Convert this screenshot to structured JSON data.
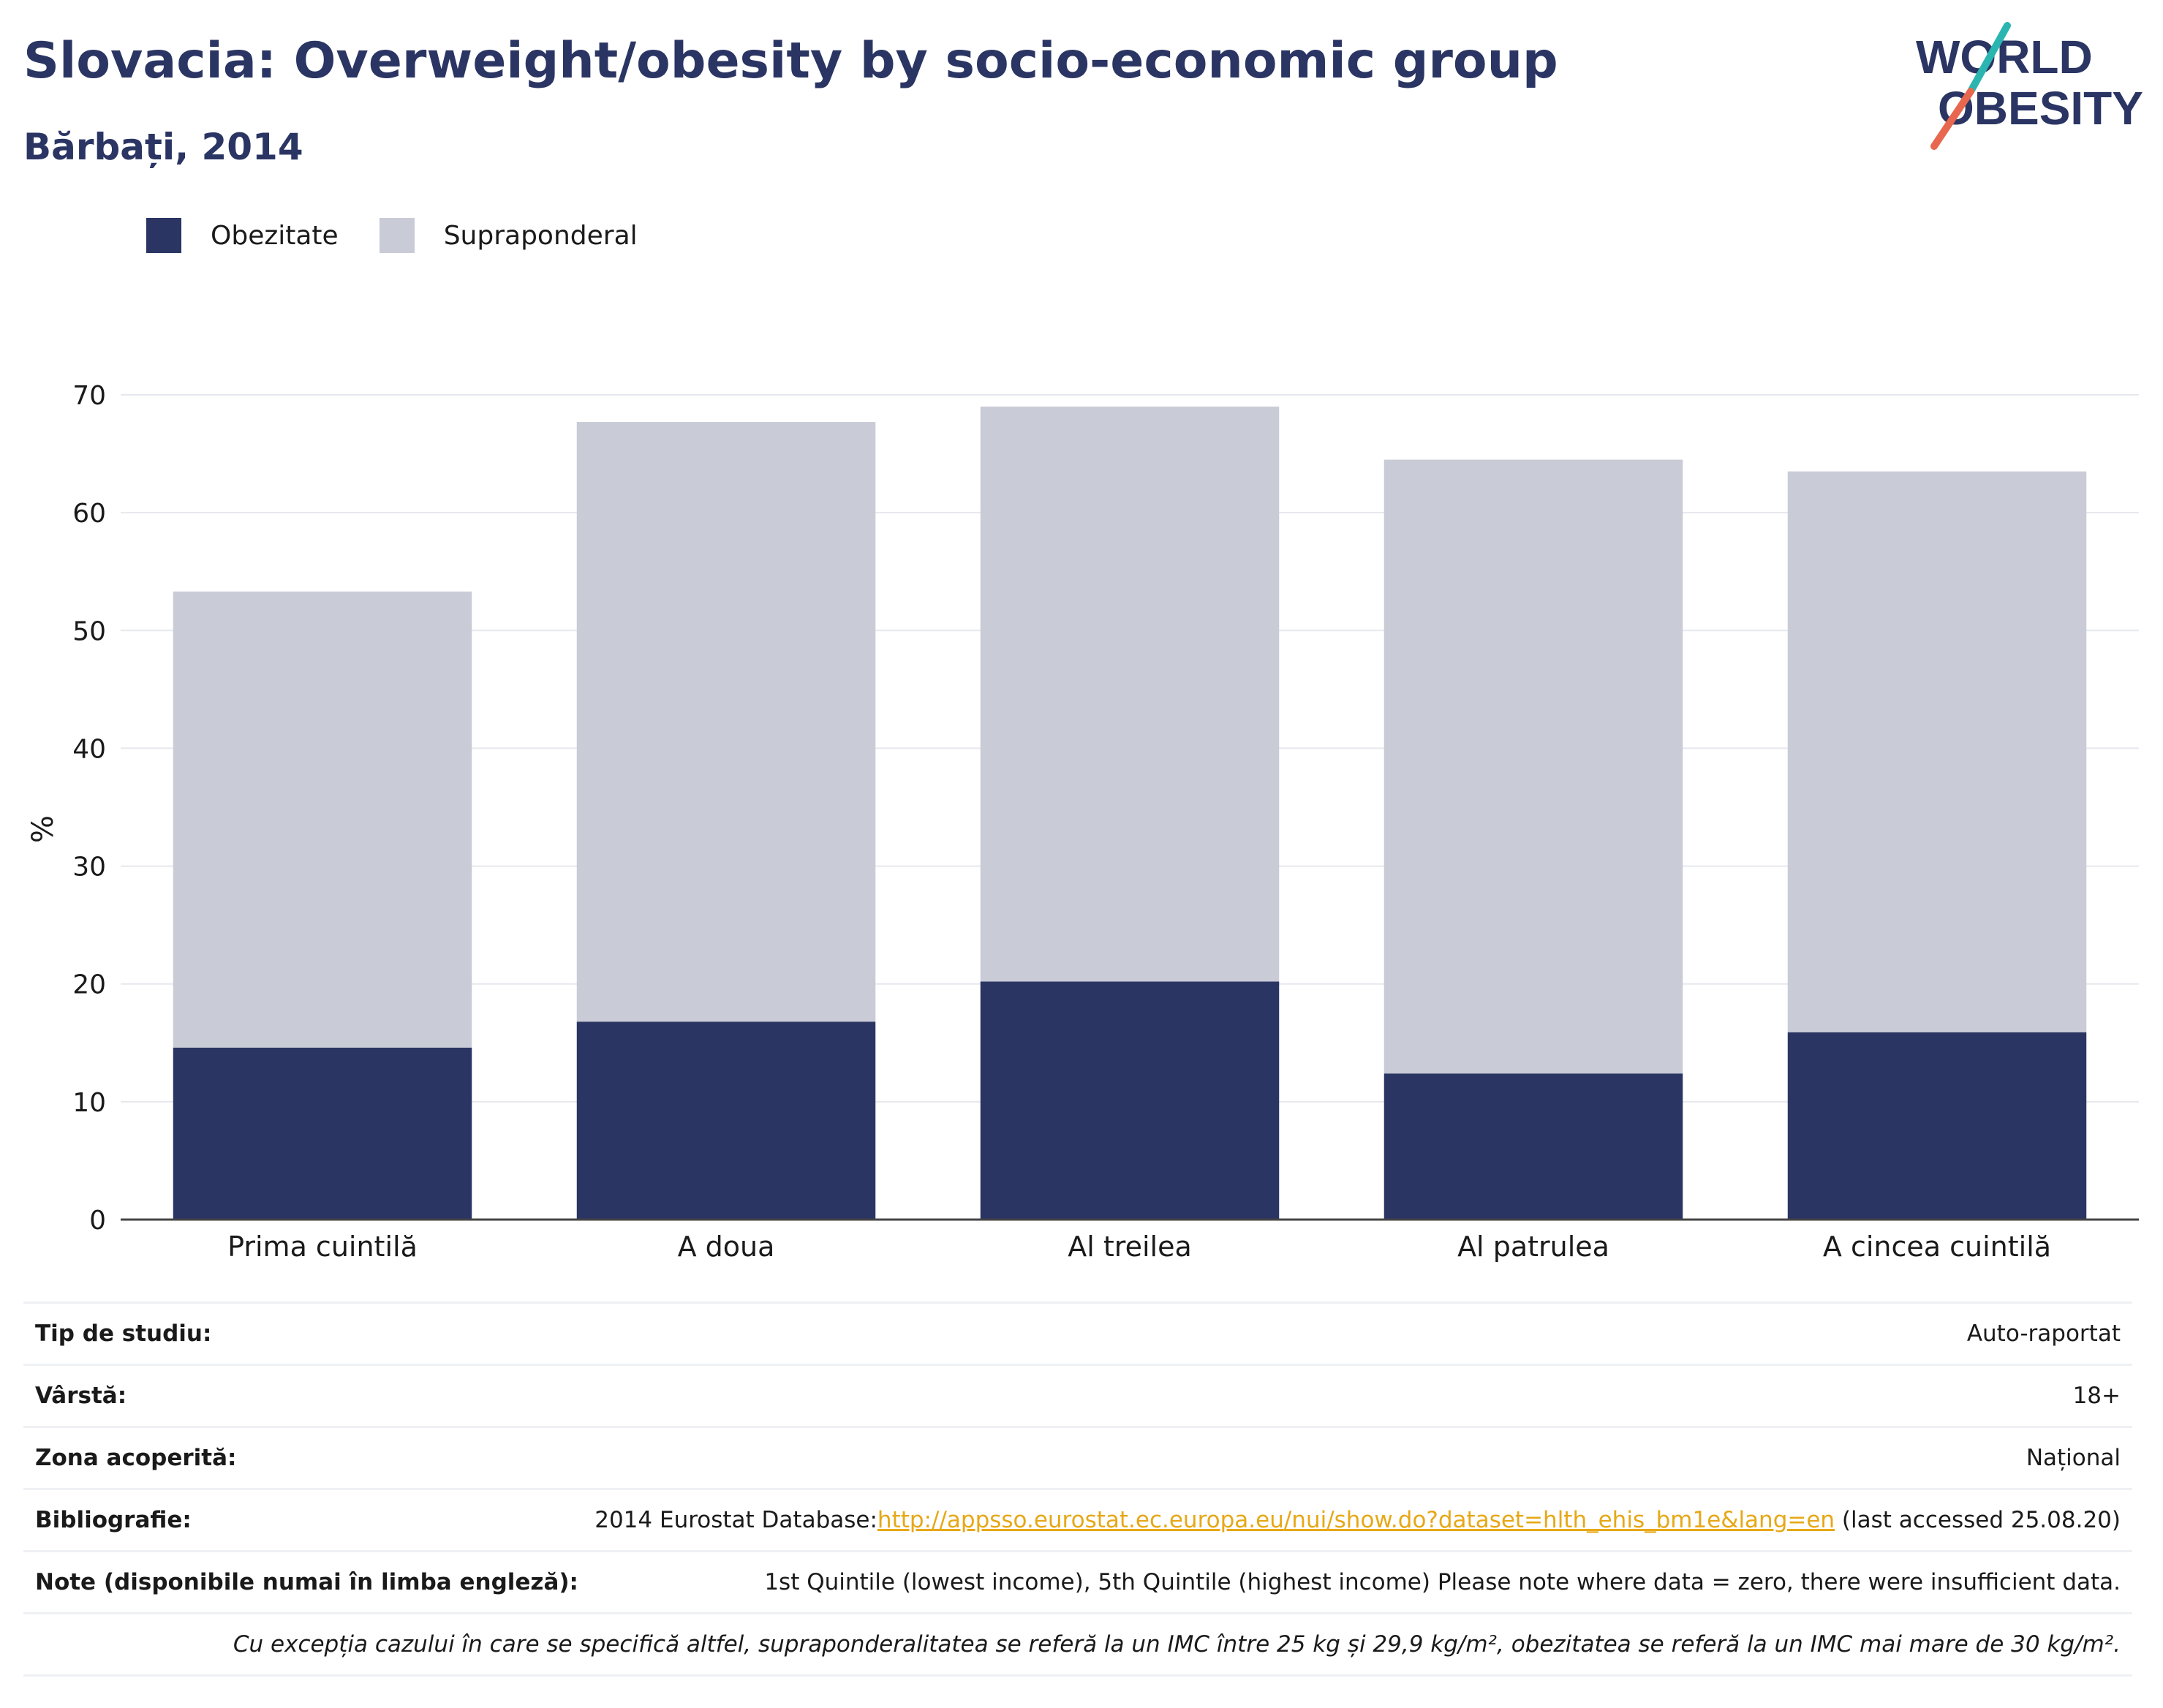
{
  "header": {
    "title": "Slovacia: Overweight/obesity by socio-economic group",
    "subtitle": "Bărbați, 2014",
    "logo_line1": "WORLD",
    "logo_line2": "OBESITY"
  },
  "legend": {
    "items": [
      {
        "label": "Obezitate",
        "color": "#2a3563"
      },
      {
        "label": "Supraponderal",
        "color": "#c9cbd7"
      }
    ]
  },
  "chart_data": {
    "type": "bar",
    "stacked": true,
    "categories": [
      "Prima cuintilă",
      "A doua",
      "Al treilea",
      "Al patrulea",
      "A cincea cuintilă"
    ],
    "series": [
      {
        "name": "Obezitate",
        "color": "#2a3563",
        "values": [
          14.6,
          16.8,
          20.2,
          12.4,
          15.9
        ]
      },
      {
        "name": "Supraponderal",
        "color": "#c9cbd7",
        "values": [
          38.7,
          50.9,
          48.8,
          52.1,
          47.6
        ]
      }
    ],
    "ylabel": "%",
    "ylim": [
      0,
      70
    ],
    "yticks": [
      0,
      10,
      20,
      30,
      40,
      50,
      60,
      70
    ],
    "grid": true,
    "legend_position": "top-left"
  },
  "meta": {
    "study_type_label": "Tip de studiu:",
    "study_type_value": "Auto-raportat",
    "age_label": "Vârstă:",
    "age_value": "18+",
    "area_label": "Zona acoperită:",
    "area_value": "Național",
    "biblio_label": "Bibliografie:",
    "biblio_prefix": "2014 Eurostat Database:",
    "biblio_link": "http://appsso.eurostat.ec.europa.eu/nui/show.do?dataset=hlth_ehis_bm1e&lang=en",
    "biblio_suffix": " (last accessed 25.08.20)",
    "notes_label": "Note (disponibile numai în limba engleză):",
    "notes_value": "1st Quintile (lowest income), 5th Quintile (highest income) Please note where data = zero, there were insufficient data.",
    "footnote": "Cu excepția cazului în care se specifică altfel, supraponderalitatea se referă la un IMC între 25 kg și 29,9 kg/m², obezitatea se referă la un IMC mai mare de 30 kg/m²."
  }
}
